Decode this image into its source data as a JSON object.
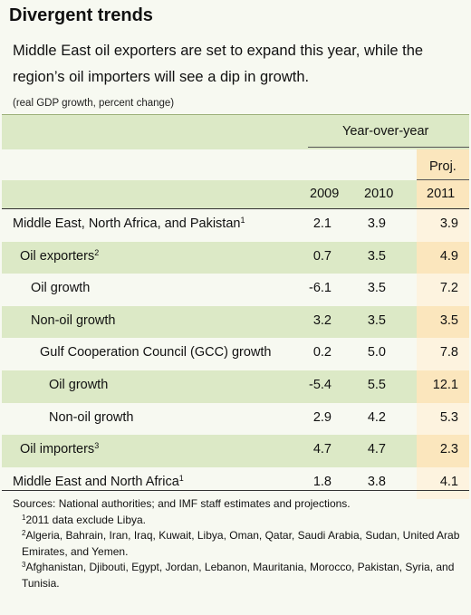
{
  "title": "Divergent trends",
  "subtitle": "Middle East oil exporters are set to expand this year, while the region’s oil importers will see a dip in growth.",
  "unit_note": "(real GDP growth, percent change)",
  "table": {
    "group_header": "Year-over-year",
    "proj_label": "Proj.",
    "years": [
      "2009",
      "2010",
      "2011"
    ],
    "rows": [
      {
        "label": "Middle East, North Africa, and Pakistan",
        "sup": "1",
        "indent": 0,
        "shade": "light",
        "values": [
          "2.1",
          "3.9",
          "3.9"
        ]
      },
      {
        "label": "Oil exporters",
        "sup": "2",
        "indent": 1,
        "shade": "green",
        "values": [
          "0.7",
          "3.5",
          "4.9"
        ]
      },
      {
        "label": "Oil growth",
        "sup": "",
        "indent": 2,
        "shade": "light",
        "values": [
          "-6.1",
          "3.5",
          "7.2"
        ]
      },
      {
        "label": "Non-oil growth",
        "sup": "",
        "indent": 2,
        "shade": "green",
        "values": [
          "3.2",
          "3.5",
          "3.5"
        ]
      },
      {
        "label": "Gulf Cooperation Council (GCC) growth",
        "sup": "",
        "indent": 3,
        "shade": "light",
        "values": [
          "0.2",
          "5.0",
          "7.8"
        ]
      },
      {
        "label": "Oil growth",
        "sup": "",
        "indent": 4,
        "shade": "green",
        "values": [
          "-5.4",
          "5.5",
          "12.1"
        ]
      },
      {
        "label": "Non-oil growth",
        "sup": "",
        "indent": 4,
        "shade": "light",
        "values": [
          "2.9",
          "4.2",
          "5.3"
        ]
      },
      {
        "label": "Oil importers",
        "sup": "3",
        "indent": 1,
        "shade": "green",
        "values": [
          "4.7",
          "4.7",
          "2.3"
        ]
      },
      {
        "label": "Middle East and North Africa",
        "sup": "1",
        "indent": 0,
        "shade": "light",
        "values": [
          "1.8",
          "3.8",
          "4.1"
        ]
      }
    ]
  },
  "notes": {
    "sources": "Sources: National authorities; and IMF staff estimates and projections.",
    "n1_num": "1",
    "n1": "2011 data exclude Libya.",
    "n2_num": "2",
    "n2": "Algeria, Bahrain, Iran, Iraq, Kuwait, Libya, Oman, Qatar, Saudi Arabia, Sudan, United Arab Emirates, and Yemen.",
    "n3_num": "3",
    "n3": "Afghanistan, Djibouti, Egypt, Jordan, Lebanon, Mauritania, Morocco, Pakistan, Syria, and Tunisia."
  },
  "colors": {
    "background": "#f7f9f1",
    "green_band": "#dce9c6",
    "projection_band": "#fbe6bd"
  }
}
